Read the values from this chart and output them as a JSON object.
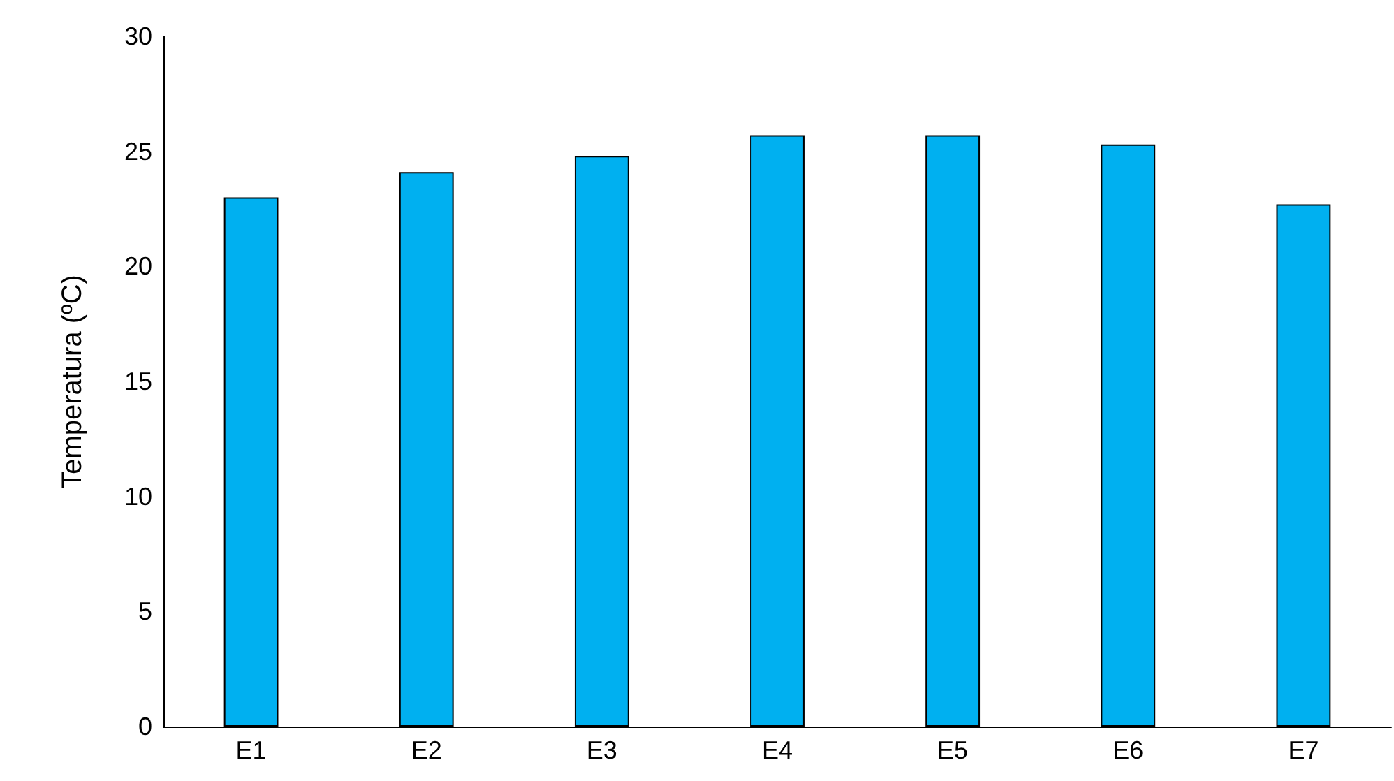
{
  "chart_data": {
    "type": "bar",
    "ylabel": "Temperatura (ºC)",
    "categories": [
      "E1",
      "E2",
      "E3",
      "E4",
      "E5",
      "E6",
      "E7"
    ],
    "values": [
      23.0,
      24.1,
      24.8,
      25.7,
      25.7,
      25.3,
      22.7
    ],
    "color": "#00b0f0",
    "ylim": [
      0,
      30
    ],
    "yticks": [
      0,
      5,
      10,
      15,
      20,
      25,
      30
    ],
    "grid": false
  }
}
